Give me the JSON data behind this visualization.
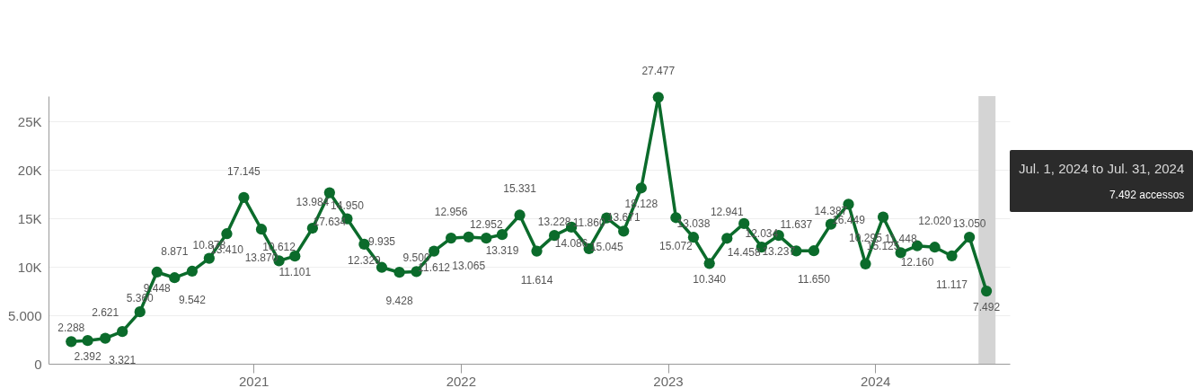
{
  "chart_data": {
    "type": "line",
    "x": [
      "2020-02-15",
      "2020-03-15",
      "2020-04-15",
      "2020-05-15",
      "2020-06-15",
      "2020-07-15",
      "2020-08-15",
      "2020-09-15",
      "2020-10-15",
      "2020-11-15",
      "2020-12-15",
      "2021-01-15",
      "2021-02-15",
      "2021-03-15",
      "2021-04-15",
      "2021-05-15",
      "2021-06-15",
      "2021-07-15",
      "2021-08-15",
      "2021-09-15",
      "2021-10-15",
      "2021-11-15",
      "2021-12-15",
      "2022-01-15",
      "2022-02-15",
      "2022-03-15",
      "2022-04-15",
      "2022-05-15",
      "2022-06-15",
      "2022-07-15",
      "2022-08-15",
      "2022-09-15",
      "2022-10-15",
      "2022-11-15",
      "2022-12-15",
      "2023-01-15",
      "2023-02-15",
      "2023-03-15",
      "2023-04-15",
      "2023-05-15",
      "2023-06-15",
      "2023-07-15",
      "2023-08-15",
      "2023-09-15",
      "2023-10-15",
      "2023-11-15",
      "2023-12-15",
      "2024-01-15",
      "2024-02-15",
      "2024-03-15",
      "2024-04-15",
      "2024-05-15",
      "2024-06-15",
      "2024-07-15"
    ],
    "series": [
      {
        "color": "#0b6b2b",
        "values": [
          2288,
          2392,
          2621,
          3321,
          5360,
          9448,
          8871,
          9542,
          10878,
          13410,
          17145,
          13870,
          10612,
          11101,
          13984,
          17634,
          14950,
          12329,
          9935,
          9428,
          9500,
          11612,
          12956,
          13065,
          12952,
          13319,
          15331,
          11614,
          13228,
          14086,
          11860,
          15045,
          13671,
          18128,
          27477,
          15072,
          13038,
          10340,
          12941,
          14458,
          12034,
          13237,
          11637,
          11650,
          14387,
          16449,
          10295,
          15125,
          11448,
          12160,
          12020,
          11117,
          13050,
          7492
        ]
      }
    ],
    "xlim": [
      "2020-01-06",
      "2024-08-25"
    ],
    "xticks": [
      {
        "value": "2021-01-01",
        "label": "2021"
      },
      {
        "value": "2022-01-01",
        "label": "2022"
      },
      {
        "value": "2023-01-01",
        "label": "2023"
      },
      {
        "value": "2024-01-01",
        "label": "2024"
      }
    ],
    "ylim": [
      0,
      27600
    ],
    "yticks": [
      0,
      {
        "value": 5000,
        "label": "5.000"
      },
      {
        "value": 10000,
        "label": "10K"
      },
      {
        "value": 15000,
        "label": "15K"
      },
      {
        "value": 20000,
        "label": "20K"
      },
      {
        "value": 25000,
        "label": "25K"
      }
    ],
    "value_labels": [
      "2.288",
      "2.392",
      "2.621",
      "3.321",
      "5.360",
      "9.448",
      "8.871",
      "9.542",
      "10.878",
      "13.410",
      "17.145",
      "13.870",
      "10.612",
      "11.101",
      "13.984",
      "17.634",
      "14.950",
      "12.329",
      "9.935",
      "9.428",
      "9.500",
      "11.612",
      "12.956",
      "13.065",
      "12.952",
      "13.319",
      "15.331",
      "11.614",
      "13.228",
      "14.086",
      "11.860",
      "15.045",
      "13.671",
      "18.128",
      "27.477",
      "15.072",
      "13.038",
      "10.340",
      "12.941",
      "14.458",
      "12.034",
      "13.237",
      "11.637",
      "11.650",
      "14.387",
      "16.449",
      "10.295",
      "15.125",
      "11.448",
      "12.160",
      "12.020",
      "11.117",
      "13.050",
      "7.492"
    ],
    "grid": "y",
    "marker": "circle",
    "line_style": "solid",
    "bands": [
      {
        "axis": "x",
        "from": "2024-07-01",
        "to": "2024-07-31",
        "color": "#d4d4d4"
      }
    ],
    "annotations": [
      "Jul. 1, 2024 to Jul. 31, 2024",
      "7.492 accessos"
    ]
  }
}
